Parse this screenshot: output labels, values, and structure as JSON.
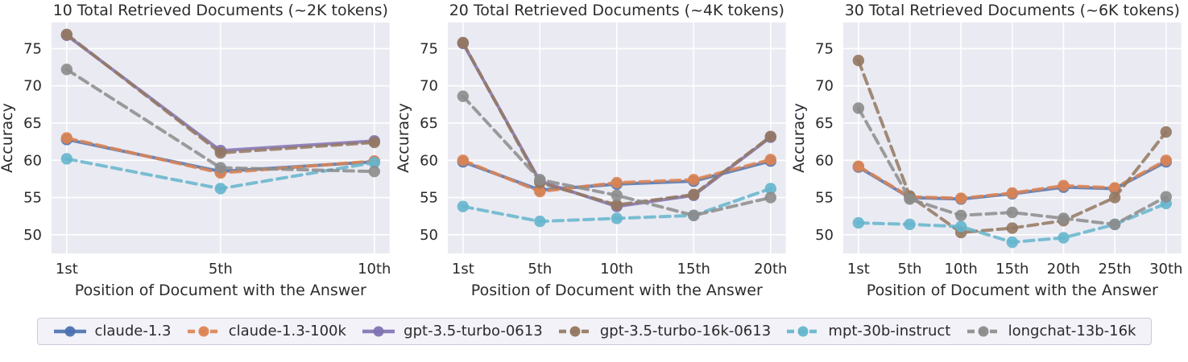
{
  "styles": {
    "plot_bg": "#eaeaf2",
    "grid_color": "#ffffff",
    "text_color": "#2b2b2e",
    "legend_bg": "#f2f2f8",
    "legend_border": "#cbcbd6"
  },
  "series_styles": [
    {
      "name": "claude-1.3",
      "color": "#4c72b0",
      "dashed": false
    },
    {
      "name": "claude-1.3-100k",
      "color": "#dd8452",
      "dashed": true
    },
    {
      "name": "gpt-3.5-turbo-0613",
      "color": "#8172b3",
      "dashed": false
    },
    {
      "name": "gpt-3.5-turbo-16k-0613",
      "color": "#937860",
      "dashed": true
    },
    {
      "name": "mpt-30b-instruct",
      "color": "#64b5cd",
      "dashed": true
    },
    {
      "name": "longchat-13b-16k",
      "color": "#8c8c8c",
      "dashed": true
    }
  ],
  "chart_data": [
    {
      "type": "line",
      "title": "10 Total Retrieved Documents (~2K tokens)",
      "xlabel": "Position of Document with the Answer",
      "ylabel": "Accuracy",
      "categories": [
        "1st",
        "5th",
        "10th"
      ],
      "ylim": [
        47.5,
        78.5
      ],
      "yticks": [
        50,
        55,
        60,
        65,
        70,
        75
      ],
      "grid": true,
      "series": [
        {
          "name": "claude-1.3",
          "values": [
            62.8,
            58.5,
            59.8
          ]
        },
        {
          "name": "claude-1.3-100k",
          "values": [
            63.0,
            58.3,
            59.9
          ]
        },
        {
          "name": "gpt-3.5-turbo-0613",
          "values": [
            76.8,
            61.3,
            62.6
          ]
        },
        {
          "name": "gpt-3.5-turbo-16k-0613",
          "values": [
            76.9,
            61.0,
            62.4
          ]
        },
        {
          "name": "mpt-30b-instruct",
          "values": [
            60.2,
            56.2,
            59.7
          ]
        },
        {
          "name": "longchat-13b-16k",
          "values": [
            72.2,
            59.0,
            58.5
          ]
        }
      ]
    },
    {
      "type": "line",
      "title": "20 Total Retrieved Documents (~4K tokens)",
      "xlabel": "Position of Document with the Answer",
      "ylabel": "Accuracy",
      "categories": [
        "1st",
        "5th",
        "10th",
        "15th",
        "20th"
      ],
      "ylim": [
        47.5,
        78.5
      ],
      "yticks": [
        50,
        55,
        60,
        65,
        70,
        75
      ],
      "grid": true,
      "series": [
        {
          "name": "claude-1.3",
          "values": [
            59.8,
            56.0,
            56.8,
            57.2,
            59.9
          ]
        },
        {
          "name": "claude-1.3-100k",
          "values": [
            60.0,
            55.8,
            57.0,
            57.4,
            60.1
          ]
        },
        {
          "name": "gpt-3.5-turbo-0613",
          "values": [
            75.7,
            57.2,
            53.8,
            55.3,
            63.1
          ]
        },
        {
          "name": "gpt-3.5-turbo-16k-0613",
          "values": [
            75.8,
            57.0,
            54.0,
            55.4,
            63.2
          ]
        },
        {
          "name": "mpt-30b-instruct",
          "values": [
            53.8,
            51.8,
            52.2,
            52.6,
            56.2
          ]
        },
        {
          "name": "longchat-13b-16k",
          "values": [
            68.6,
            57.4,
            55.3,
            52.6,
            55.0
          ]
        }
      ]
    },
    {
      "type": "line",
      "title": "30 Total Retrieved Documents (~6K tokens)",
      "xlabel": "Position of Document with the Answer",
      "ylabel": "Accuracy",
      "categories": [
        "1st",
        "5th",
        "10th",
        "15th",
        "20th",
        "25th",
        "30th"
      ],
      "ylim": [
        47.5,
        78.5
      ],
      "yticks": [
        50,
        55,
        60,
        65,
        70,
        75
      ],
      "grid": true,
      "series": [
        {
          "name": "claude-1.3",
          "values": [
            59.1,
            55.0,
            54.8,
            55.5,
            56.4,
            56.2,
            59.8
          ]
        },
        {
          "name": "claude-1.3-100k",
          "values": [
            59.2,
            55.1,
            54.9,
            55.6,
            56.6,
            56.3,
            60.0
          ]
        },
        {
          "name": "gpt-3.5-turbo-16k-0613",
          "values": [
            73.4,
            55.2,
            50.3,
            50.9,
            51.9,
            55.0,
            63.8
          ]
        },
        {
          "name": "mpt-30b-instruct",
          "values": [
            51.6,
            51.4,
            51.1,
            49.0,
            49.6,
            51.4,
            54.2
          ]
        },
        {
          "name": "longchat-13b-16k",
          "values": [
            67.0,
            54.8,
            52.6,
            53.0,
            52.2,
            51.4,
            55.1
          ]
        }
      ]
    }
  ],
  "legend": {
    "position": "bottom-horizontal",
    "items": [
      "claude-1.3",
      "claude-1.3-100k",
      "gpt-3.5-turbo-0613",
      "gpt-3.5-turbo-16k-0613",
      "mpt-30b-instruct",
      "longchat-13b-16k"
    ]
  }
}
